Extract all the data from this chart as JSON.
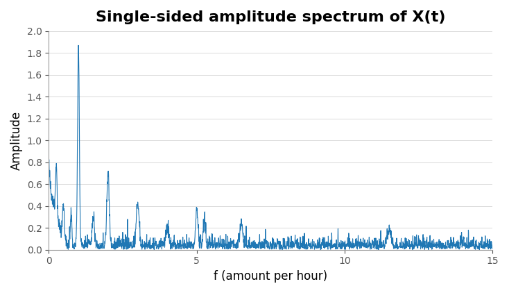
{
  "title": "Single-sided amplitude spectrum of X(t)",
  "xlabel": "f (amount per hour)",
  "ylabel": "Amplitude",
  "xlim": [
    0,
    15
  ],
  "ylim": [
    0,
    2
  ],
  "yticks": [
    0,
    0.2,
    0.4,
    0.6,
    0.8,
    1.0,
    1.2,
    1.4,
    1.6,
    1.8,
    2.0
  ],
  "xticks": [
    0,
    5,
    10,
    15
  ],
  "line_color": "#1f77b4",
  "line_width": 0.8,
  "background_color": "#ffffff",
  "title_fontsize": 16,
  "title_fontweight": "bold",
  "label_fontsize": 12,
  "seed": 42,
  "n_points": 3000,
  "fs": 15.0,
  "main_peak_freq": 1.0,
  "main_peak_amp": 1.8,
  "second_peak_freq": 2.0,
  "second_peak_amp": 0.65,
  "third_peak_freq": 3.0,
  "third_peak_amp": 0.42,
  "fourth_peak_freq": 5.0,
  "fourth_peak_amp": 0.31,
  "dc_amp": 0.7
}
